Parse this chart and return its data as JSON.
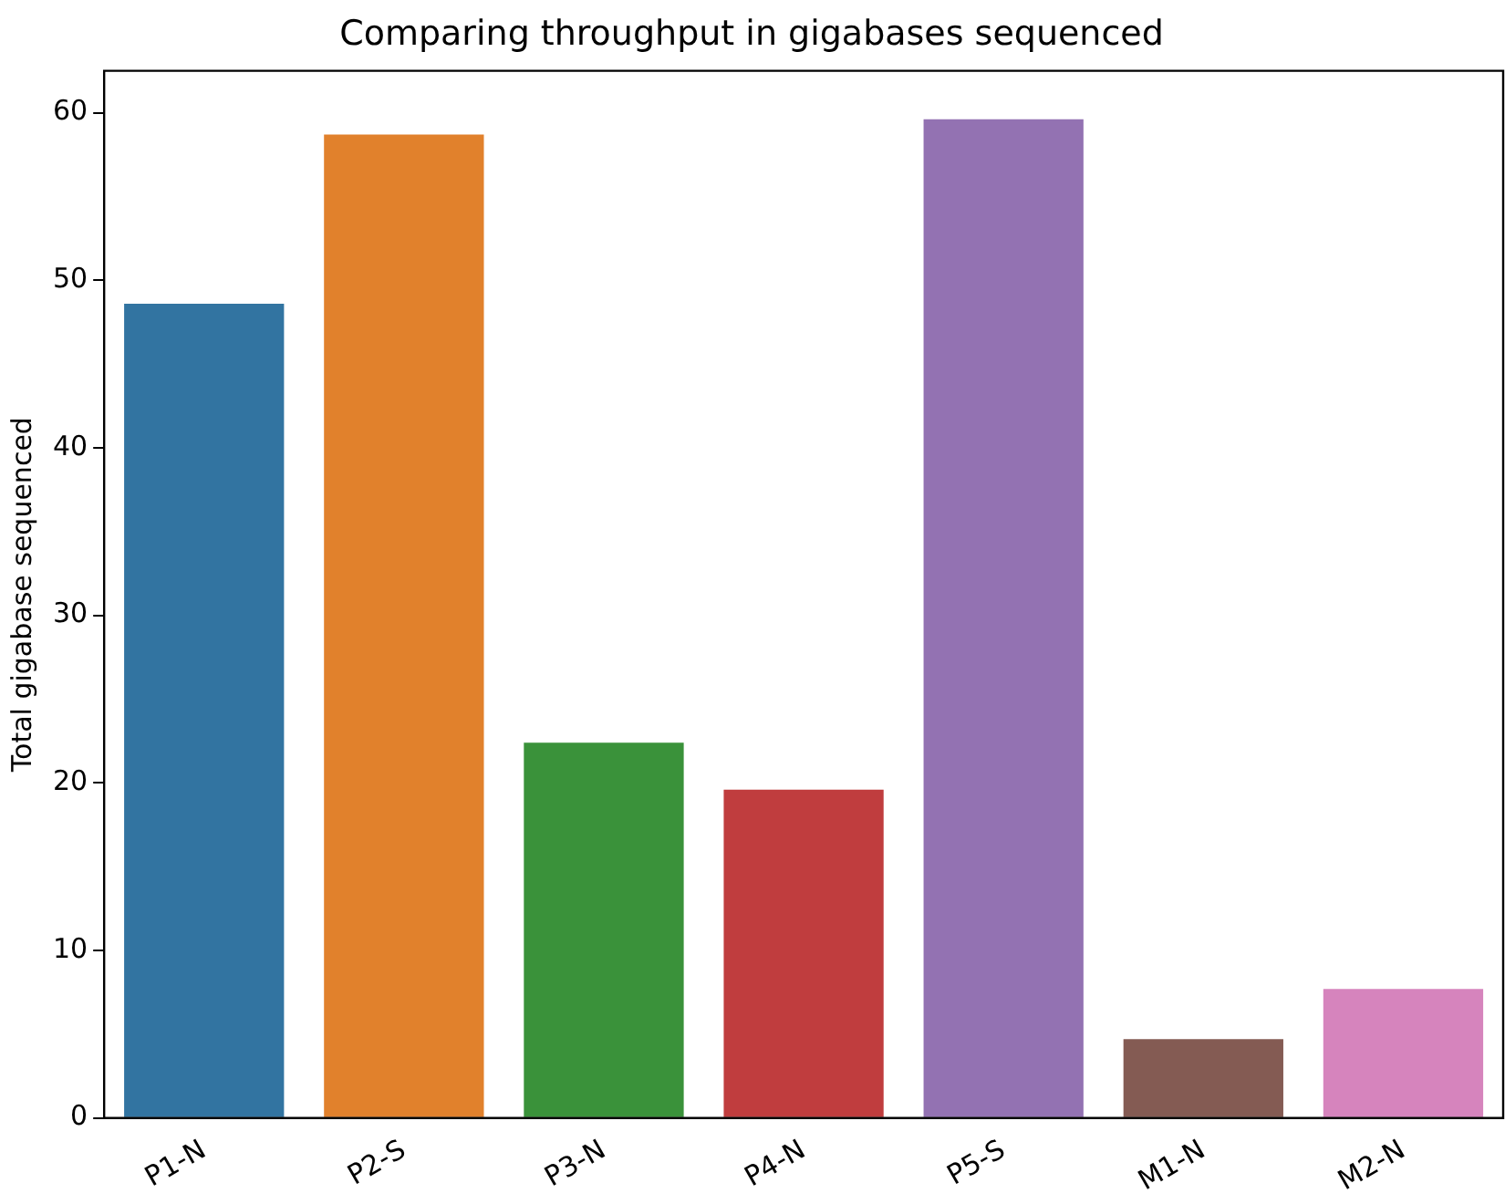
{
  "chart_data": {
    "type": "bar",
    "title": "Comparing throughput in gigabases sequenced",
    "ylabel": "Total gigabase sequenced",
    "categories": [
      "P1-N",
      "P2-S",
      "P3-N",
      "P4-N",
      "P5-S",
      "M1-N",
      "M2-N"
    ],
    "values": [
      48.6,
      58.7,
      22.4,
      19.6,
      59.6,
      4.7,
      7.7
    ],
    "colors": [
      "#3274a1",
      "#e1812c",
      "#3a923a",
      "#c03d3e",
      "#9372b2",
      "#845b53",
      "#d684bd"
    ],
    "ylim": [
      0,
      62.5
    ],
    "yticks": [
      0,
      10,
      20,
      30,
      40,
      50,
      60
    ],
    "grid": false,
    "legend": false
  }
}
